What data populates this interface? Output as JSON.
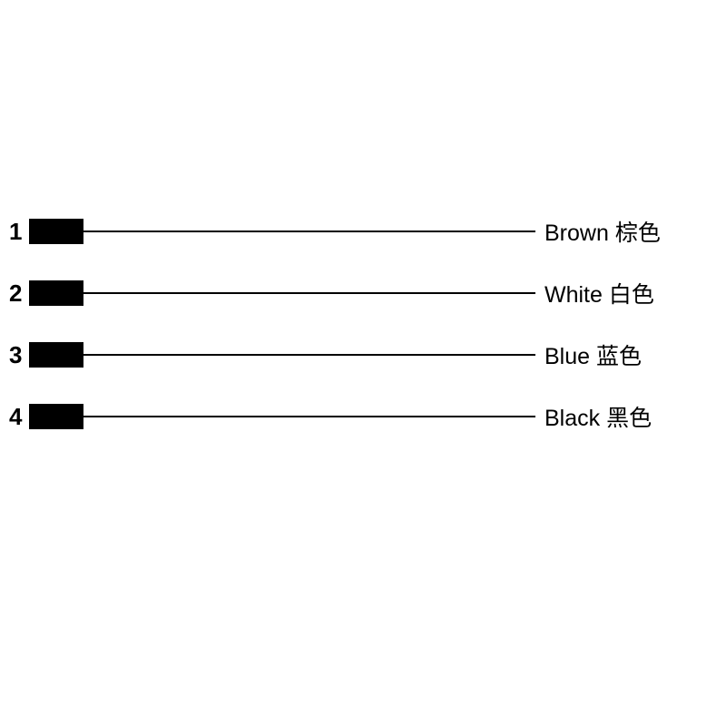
{
  "diagram": {
    "type": "wiring-diagram",
    "background_color": "#ffffff",
    "pin_number_color": "#000000",
    "pin_number_fontsize": 26,
    "pin_number_fontweight": "bold",
    "connector_block_color": "#000000",
    "connector_block_width": 60,
    "connector_block_height": 28,
    "wire_line_color": "#000000",
    "wire_line_width": 2,
    "wire_line_length": 498,
    "label_fontsize": 25,
    "label_color": "#000000",
    "row_spacing": 38,
    "wires": [
      {
        "pin": "1",
        "label_en": "Brown",
        "label_cn": "棕色"
      },
      {
        "pin": "2",
        "label_en": "White",
        "label_cn": "白色"
      },
      {
        "pin": "3",
        "label_en": "Blue",
        "label_cn": "蓝色"
      },
      {
        "pin": "4",
        "label_en": "Black",
        "label_cn": "黑色"
      }
    ]
  }
}
